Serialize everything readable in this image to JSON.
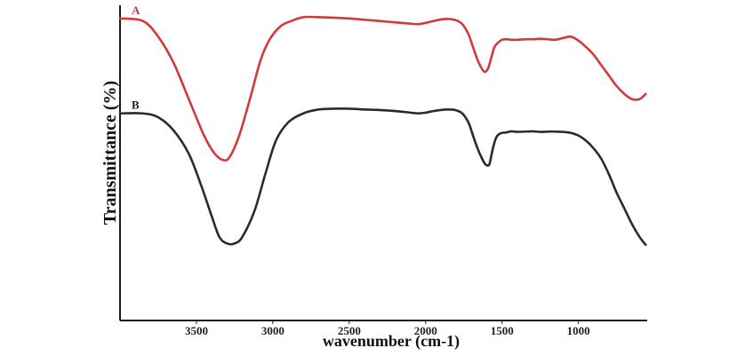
{
  "chart_data": {
    "type": "line",
    "title": "",
    "xlabel": "wavenumber (cm-1)",
    "ylabel": "Transmittance (%)",
    "x_reversed": true,
    "xlim": [
      4000,
      550
    ],
    "x_ticks": [
      3500,
      3000,
      2500,
      2000,
      1500,
      1000
    ],
    "x_tick_labels": [
      "3500",
      "3000",
      "2500",
      "2000",
      "1500",
      "1000"
    ],
    "y_ticks_shown": false,
    "grid": false,
    "legend": "none",
    "series_colors": {
      "A": "#d03a3a",
      "B": "#2b2b2b"
    },
    "series": [
      {
        "name": "A",
        "label": "A",
        "color": "#d03a3a",
        "x": [
          4000,
          3850,
          3750,
          3650,
          3550,
          3450,
          3380,
          3320,
          3280,
          3220,
          3150,
          3080,
          3020,
          2950,
          2880,
          2800,
          2700,
          2600,
          2500,
          2400,
          2300,
          2200,
          2100,
          2050,
          2000,
          1950,
          1900,
          1850,
          1800,
          1760,
          1720,
          1690,
          1660,
          1630,
          1610,
          1590,
          1570,
          1550,
          1520,
          1500,
          1470,
          1440,
          1400,
          1350,
          1300,
          1250,
          1200,
          1150,
          1100,
          1050,
          1000,
          950,
          900,
          850,
          800,
          750,
          700,
          650,
          600,
          560
        ],
        "y": [
          97,
          96,
          90,
          80,
          66,
          52,
          45,
          42.5,
          44,
          52,
          66,
          81,
          89,
          94,
          96,
          97.5,
          97.5,
          97.3,
          97,
          96.5,
          96,
          95.5,
          95,
          94.8,
          95.3,
          96,
          96.6,
          96.8,
          96.3,
          94.8,
          91,
          86,
          81,
          77.5,
          76.5,
          78,
          82,
          86,
          88,
          88.8,
          89,
          88.8,
          88.8,
          89,
          89,
          89.2,
          89,
          88.8,
          89.5,
          90,
          88.5,
          86,
          83,
          79,
          75,
          71,
          68,
          66,
          66,
          68
        ]
      },
      {
        "name": "B",
        "label": "B",
        "color": "#2b2b2b",
        "x": [
          4000,
          3850,
          3750,
          3650,
          3550,
          3470,
          3400,
          3350,
          3300,
          3250,
          3200,
          3120,
          3050,
          2980,
          2900,
          2800,
          2700,
          2600,
          2500,
          2400,
          2300,
          2200,
          2100,
          2050,
          2000,
          1950,
          1900,
          1850,
          1800,
          1760,
          1720,
          1690,
          1660,
          1630,
          1610,
          1590,
          1580,
          1560,
          1540,
          1520,
          1500,
          1470,
          1440,
          1400,
          1350,
          1300,
          1250,
          1200,
          1150,
          1100,
          1050,
          1000,
          950,
          900,
          850,
          800,
          750,
          700,
          650,
          600,
          560
        ],
        "y": [
          60.5,
          60.5,
          59,
          54,
          45,
          33,
          21,
          13,
          10.5,
          10.5,
          13,
          23,
          37,
          50,
          57,
          60.5,
          62,
          62.3,
          62.3,
          62,
          61.8,
          61.4,
          60.8,
          60.5,
          60.8,
          61.4,
          61.8,
          62,
          61.7,
          60.5,
          57,
          52,
          47,
          43,
          41,
          40.5,
          41.5,
          47,
          51,
          52.5,
          53,
          53.2,
          53.6,
          53.4,
          53.5,
          53.6,
          53.4,
          53.5,
          53.5,
          53.4,
          53,
          52,
          50,
          47,
          43,
          37,
          30,
          24,
          18,
          13,
          10
        ]
      }
    ],
    "yrange": [
      0,
      100
    ]
  }
}
